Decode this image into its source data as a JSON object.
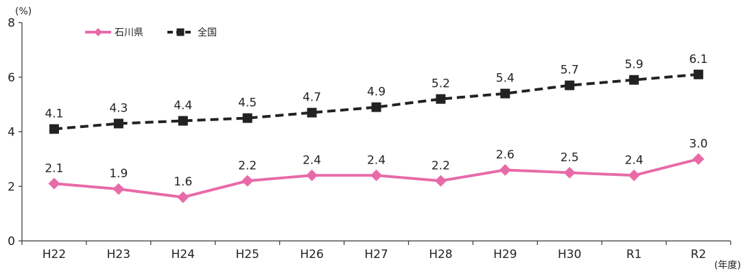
{
  "chart_data": {
    "type": "line",
    "categories": [
      "H22",
      "H23",
      "H24",
      "H25",
      "H26",
      "H27",
      "H28",
      "H29",
      "H30",
      "R1",
      "R2"
    ],
    "y_unit": "(%)",
    "x_unit": "(年度)",
    "ylim": [
      0,
      8
    ],
    "yticks": [
      0,
      2,
      4,
      6,
      8
    ],
    "grid": false,
    "legend_position": "top-left",
    "series": [
      {
        "name": "石川県",
        "values": [
          2.1,
          1.9,
          1.6,
          2.2,
          2.4,
          2.4,
          2.2,
          2.6,
          2.5,
          2.4,
          3.0
        ],
        "color": "#e86aa7",
        "marker": "diamond",
        "line_style": "solid"
      },
      {
        "name": "全国",
        "values": [
          4.1,
          4.3,
          4.4,
          4.5,
          4.7,
          4.9,
          5.2,
          5.4,
          5.7,
          5.9,
          6.1
        ],
        "color": "#222222",
        "marker": "square",
        "line_style": "dashed"
      }
    ]
  }
}
